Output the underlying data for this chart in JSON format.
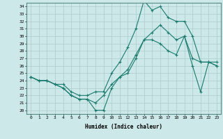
{
  "xlabel": "Humidex (Indice chaleur)",
  "bg_color": "#cce8e8",
  "line_color": "#1a7a6e",
  "grid_color": "#aacccc",
  "xlim": [
    -0.5,
    23.5
  ],
  "ylim": [
    19.5,
    34.5
  ],
  "yticks": [
    20,
    21,
    22,
    23,
    24,
    25,
    26,
    27,
    28,
    29,
    30,
    31,
    32,
    33,
    34
  ],
  "xticks": [
    0,
    1,
    2,
    3,
    4,
    5,
    6,
    7,
    8,
    9,
    10,
    11,
    12,
    13,
    14,
    15,
    16,
    17,
    18,
    19,
    20,
    21,
    22,
    23
  ],
  "line_high": [
    24.5,
    24.0,
    24.0,
    23.5,
    23.5,
    22.5,
    22.0,
    22.0,
    22.5,
    22.5,
    25.0,
    26.5,
    28.5,
    31.0,
    34.8,
    33.5,
    34.0,
    32.5,
    32.0,
    32.0,
    30.0,
    26.5,
    26.5,
    26.0
  ],
  "line_mid": [
    24.5,
    24.0,
    24.0,
    23.5,
    23.0,
    22.0,
    21.5,
    21.5,
    21.0,
    22.0,
    23.5,
    24.5,
    25.5,
    27.5,
    29.5,
    30.5,
    31.5,
    30.5,
    29.5,
    30.0,
    27.0,
    26.5,
    26.5,
    26.5
  ],
  "line_low": [
    24.5,
    24.0,
    24.0,
    23.5,
    23.0,
    22.0,
    21.5,
    21.5,
    20.0,
    20.0,
    23.0,
    24.5,
    25.0,
    27.0,
    29.5,
    29.5,
    29.0,
    28.0,
    27.5,
    30.0,
    26.0,
    22.5,
    26.5,
    26.0
  ]
}
